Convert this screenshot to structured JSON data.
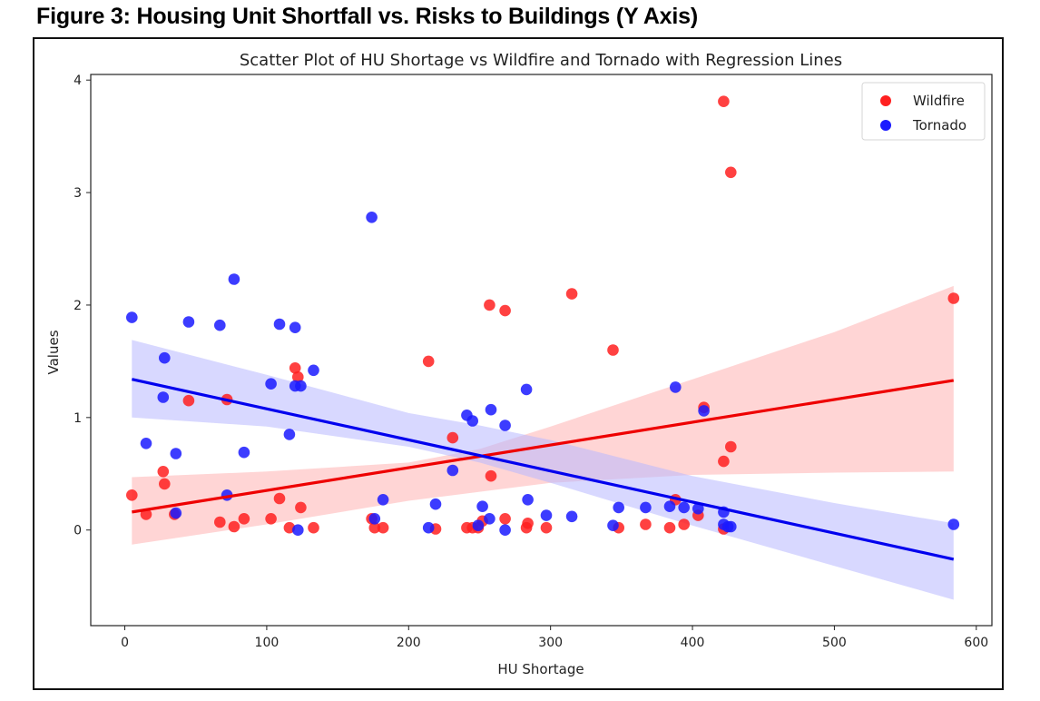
{
  "figure_caption": "Figure 3: Housing Unit Shortfall vs. Risks to Buildings (Y Axis)",
  "chart_data": {
    "type": "scatter",
    "title": "Scatter Plot of HU Shortage vs Wildfire and Tornado with Regression Lines",
    "xlabel": "HU Shortage",
    "ylabel": "Values",
    "xlim": [
      -24,
      611
    ],
    "ylim": [
      -0.85,
      4.05
    ],
    "xticks": [
      0,
      100,
      200,
      300,
      400,
      500,
      600
    ],
    "yticks": [
      0,
      1,
      2,
      3,
      4
    ],
    "grid": false,
    "legend": {
      "position": "top-right",
      "entries": [
        "Wildfire",
        "Tornado"
      ]
    },
    "series": [
      {
        "name": "Wildfire",
        "color": "#ff2020",
        "line_color": "#ee0000",
        "band_color": "#ffb3b3",
        "points": [
          [
            5,
            0.31
          ],
          [
            15,
            0.14
          ],
          [
            27,
            0.52
          ],
          [
            28,
            0.41
          ],
          [
            35,
            0.14
          ],
          [
            45,
            1.15
          ],
          [
            67,
            0.07
          ],
          [
            72,
            1.16
          ],
          [
            77,
            0.03
          ],
          [
            84,
            0.1
          ],
          [
            103,
            0.1
          ],
          [
            109,
            0.28
          ],
          [
            116,
            0.02
          ],
          [
            120,
            1.44
          ],
          [
            122,
            1.36
          ],
          [
            124,
            0.2
          ],
          [
            133,
            0.02
          ],
          [
            174,
            0.1
          ],
          [
            176,
            0.02
          ],
          [
            182,
            0.02
          ],
          [
            214,
            1.5
          ],
          [
            219,
            0.01
          ],
          [
            231,
            0.82
          ],
          [
            241,
            0.02
          ],
          [
            245,
            0.02
          ],
          [
            249,
            0.02
          ],
          [
            252,
            0.08
          ],
          [
            257,
            2.0
          ],
          [
            258,
            0.48
          ],
          [
            268,
            1.95
          ],
          [
            268,
            0.1
          ],
          [
            283,
            0.02
          ],
          [
            284,
            0.06
          ],
          [
            297,
            0.02
          ],
          [
            315,
            2.1
          ],
          [
            344,
            1.6
          ],
          [
            348,
            0.02
          ],
          [
            367,
            0.05
          ],
          [
            384,
            0.02
          ],
          [
            388,
            0.27
          ],
          [
            394,
            0.05
          ],
          [
            404,
            0.13
          ],
          [
            408,
            1.09
          ],
          [
            422,
            0.61
          ],
          [
            422,
            3.81
          ],
          [
            422,
            0.01
          ],
          [
            427,
            3.18
          ],
          [
            427,
            0.74
          ],
          [
            584,
            2.06
          ]
        ],
        "regression": {
          "x": [
            5,
            584
          ],
          "y": [
            0.16,
            1.33
          ]
        },
        "ci_band": {
          "x": [
            5,
            100,
            200,
            250,
            300,
            400,
            500,
            584
          ],
          "lower": [
            -0.13,
            0.05,
            0.26,
            0.34,
            0.42,
            0.49,
            0.51,
            0.52
          ],
          "upper": [
            0.47,
            0.52,
            0.6,
            0.72,
            0.92,
            1.34,
            1.76,
            2.17
          ]
        }
      },
      {
        "name": "Tornado",
        "color": "#1a1aff",
        "line_color": "#0000ee",
        "band_color": "#b8b8ff",
        "points": [
          [
            5,
            1.89
          ],
          [
            15,
            0.77
          ],
          [
            28,
            1.53
          ],
          [
            27,
            1.18
          ],
          [
            36,
            0.68
          ],
          [
            36,
            0.15
          ],
          [
            45,
            1.85
          ],
          [
            67,
            1.82
          ],
          [
            72,
            0.31
          ],
          [
            77,
            2.23
          ],
          [
            84,
            0.69
          ],
          [
            103,
            1.3
          ],
          [
            109,
            1.83
          ],
          [
            116,
            0.85
          ],
          [
            120,
            1.8
          ],
          [
            120,
            1.28
          ],
          [
            124,
            1.28
          ],
          [
            122,
            0.0
          ],
          [
            133,
            1.42
          ],
          [
            174,
            2.78
          ],
          [
            176,
            0.1
          ],
          [
            182,
            0.27
          ],
          [
            214,
            0.02
          ],
          [
            219,
            0.23
          ],
          [
            231,
            0.53
          ],
          [
            241,
            1.02
          ],
          [
            245,
            0.97
          ],
          [
            249,
            0.04
          ],
          [
            252,
            0.21
          ],
          [
            258,
            1.07
          ],
          [
            257,
            0.1
          ],
          [
            268,
            0.93
          ],
          [
            268,
            0.0
          ],
          [
            283,
            1.25
          ],
          [
            284,
            0.27
          ],
          [
            297,
            0.13
          ],
          [
            315,
            0.12
          ],
          [
            344,
            0.04
          ],
          [
            348,
            0.2
          ],
          [
            367,
            0.2
          ],
          [
            384,
            0.21
          ],
          [
            388,
            1.27
          ],
          [
            394,
            0.2
          ],
          [
            404,
            0.19
          ],
          [
            408,
            1.06
          ],
          [
            422,
            0.16
          ],
          [
            422,
            0.05
          ],
          [
            425,
            0.03
          ],
          [
            427,
            0.03
          ],
          [
            584,
            0.05
          ]
        ],
        "regression": {
          "x": [
            5,
            584
          ],
          "y": [
            1.34,
            -0.26
          ]
        },
        "ci_band": {
          "x": [
            5,
            100,
            200,
            250,
            300,
            400,
            500,
            584
          ],
          "lower": [
            1.0,
            0.92,
            0.74,
            0.6,
            0.42,
            0.04,
            -0.32,
            -0.62
          ],
          "upper": [
            1.69,
            1.38,
            1.04,
            0.93,
            0.8,
            0.48,
            0.24,
            0.06
          ]
        }
      }
    ]
  }
}
